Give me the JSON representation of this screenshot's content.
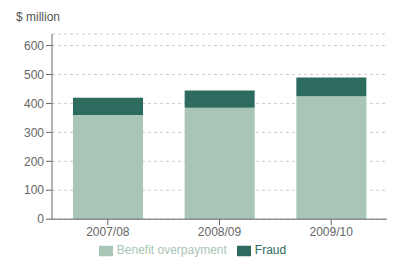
{
  "chart_data": {
    "type": "bar",
    "stacked": true,
    "ylabel": "$ million",
    "categories": [
      "2007/08",
      "2008/09",
      "2009/10"
    ],
    "series": [
      {
        "name": "Benefit overpayment",
        "color": "#a8c5b5",
        "values": [
          360,
          385,
          425
        ]
      },
      {
        "name": "Fraud",
        "color": "#2d6b5e",
        "values": [
          60,
          60,
          65
        ]
      }
    ],
    "ylim": [
      0,
      640
    ],
    "yticks": [
      0,
      100,
      200,
      300,
      400,
      500,
      600
    ],
    "grid": true,
    "legend": "bottom"
  }
}
